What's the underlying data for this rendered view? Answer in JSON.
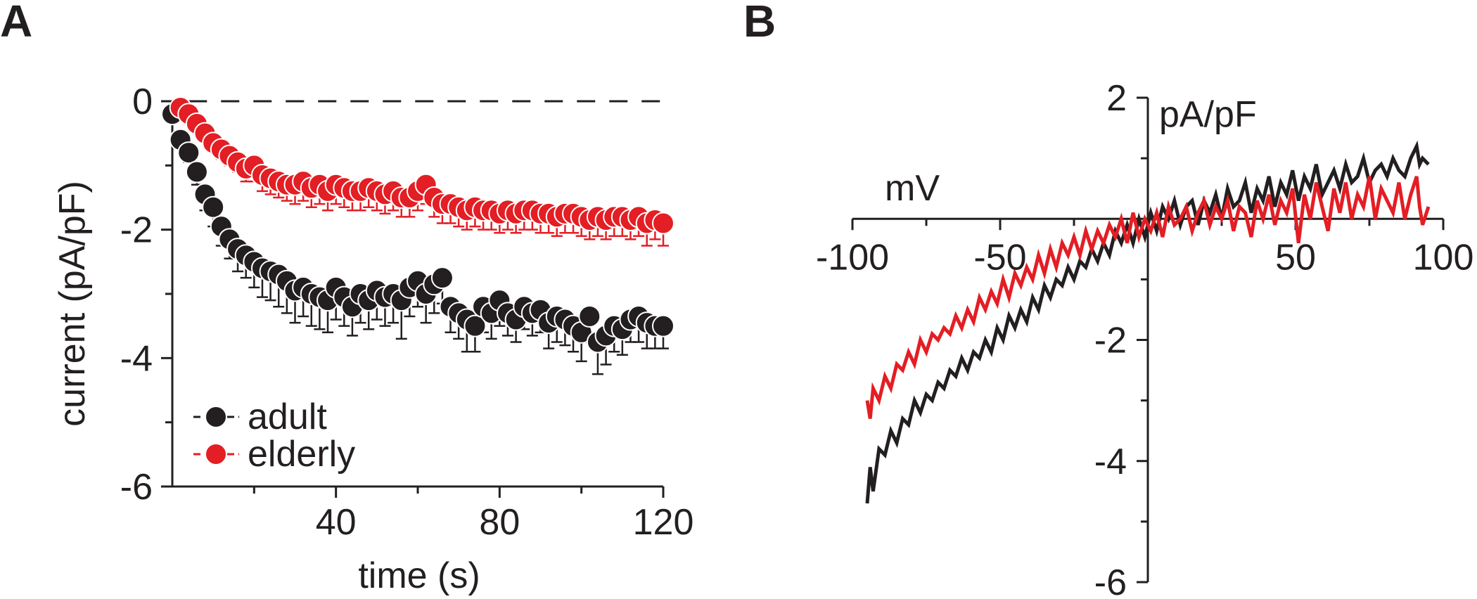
{
  "chart_data": [
    {
      "panel": "A",
      "type": "scatter",
      "xlabel": "time (s)",
      "ylabel": "current (pA/pF)",
      "xlim": [
        0,
        120
      ],
      "ylim": [
        -6,
        0
      ],
      "xticks": [
        40,
        80,
        120
      ],
      "yticks": [
        0,
        -2,
        -4,
        -6
      ],
      "reference_line": {
        "y": 0,
        "style": "dashed"
      },
      "legend": {
        "position": "bottom-left",
        "entries": [
          "adult",
          "elderly"
        ]
      },
      "series": [
        {
          "name": "adult",
          "color": "#231f20",
          "x": [
            0,
            2,
            4,
            6,
            8,
            10,
            12,
            14,
            16,
            18,
            20,
            22,
            24,
            26,
            28,
            30,
            32,
            34,
            36,
            38,
            40,
            42,
            44,
            46,
            48,
            50,
            52,
            54,
            56,
            58,
            60,
            62,
            64,
            66,
            68,
            70,
            72,
            74,
            76,
            78,
            80,
            82,
            84,
            86,
            88,
            90,
            92,
            94,
            96,
            98,
            100,
            102,
            104,
            106,
            108,
            110,
            112,
            114,
            116,
            118,
            120
          ],
          "y": [
            -0.2,
            -0.6,
            -0.8,
            -1.1,
            -1.45,
            -1.65,
            -1.95,
            -2.15,
            -2.3,
            -2.4,
            -2.5,
            -2.6,
            -2.65,
            -2.7,
            -2.8,
            -2.95,
            -2.9,
            -3.0,
            -3.05,
            -3.1,
            -2.9,
            -3.05,
            -3.2,
            -3.0,
            -3.1,
            -2.95,
            -3.05,
            -3.0,
            -3.1,
            -2.9,
            -2.8,
            -3.0,
            -2.85,
            -2.75,
            -3.2,
            -3.3,
            -3.4,
            -3.5,
            -3.2,
            -3.3,
            -3.1,
            -3.3,
            -3.4,
            -3.2,
            -3.3,
            -3.25,
            -3.45,
            -3.35,
            -3.4,
            -3.5,
            -3.6,
            -3.35,
            -3.75,
            -3.65,
            -3.5,
            -3.55,
            -3.4,
            -3.35,
            -3.45,
            -3.5,
            -3.5
          ],
          "error": [
            0.05,
            0.1,
            0.15,
            0.2,
            0.25,
            0.3,
            0.3,
            0.3,
            0.35,
            0.35,
            0.4,
            0.45,
            0.45,
            0.5,
            0.5,
            0.5,
            0.45,
            0.5,
            0.5,
            0.5,
            0.5,
            0.45,
            0.45,
            0.45,
            0.45,
            0.45,
            0.45,
            0.45,
            0.6,
            0.45,
            0.4,
            0.45,
            0.45,
            0.4,
            0.4,
            0.4,
            0.5,
            0.4,
            0.4,
            0.4,
            0.4,
            0.35,
            0.35,
            0.35,
            0.35,
            0.35,
            0.4,
            0.4,
            0.4,
            0.4,
            0.45,
            0.4,
            0.5,
            0.45,
            0.4,
            0.4,
            0.35,
            0.4,
            0.4,
            0.35,
            0.35
          ]
        },
        {
          "name": "elderly",
          "color": "#e31e24",
          "x": [
            2,
            4,
            6,
            8,
            10,
            12,
            14,
            16,
            18,
            20,
            22,
            24,
            26,
            28,
            30,
            32,
            34,
            36,
            38,
            40,
            42,
            44,
            46,
            48,
            50,
            52,
            54,
            56,
            58,
            60,
            62,
            64,
            66,
            68,
            70,
            72,
            74,
            76,
            78,
            80,
            82,
            84,
            86,
            88,
            90,
            92,
            94,
            96,
            98,
            100,
            102,
            104,
            106,
            108,
            110,
            112,
            114,
            116,
            118,
            120
          ],
          "y": [
            -0.1,
            -0.2,
            -0.35,
            -0.5,
            -0.65,
            -0.75,
            -0.85,
            -0.95,
            -1.05,
            -1.0,
            -1.15,
            -1.2,
            -1.25,
            -1.3,
            -1.3,
            -1.25,
            -1.35,
            -1.3,
            -1.4,
            -1.3,
            -1.35,
            -1.4,
            -1.4,
            -1.35,
            -1.4,
            -1.45,
            -1.4,
            -1.5,
            -1.5,
            -1.4,
            -1.3,
            -1.5,
            -1.6,
            -1.6,
            -1.65,
            -1.7,
            -1.65,
            -1.7,
            -1.7,
            -1.75,
            -1.7,
            -1.75,
            -1.7,
            -1.7,
            -1.75,
            -1.75,
            -1.8,
            -1.75,
            -1.75,
            -1.8,
            -1.85,
            -1.8,
            -1.85,
            -1.8,
            -1.8,
            -1.85,
            -1.8,
            -1.9,
            -1.85,
            -1.9
          ],
          "error": [
            0.05,
            0.05,
            0.1,
            0.1,
            0.1,
            0.15,
            0.15,
            0.15,
            0.2,
            0.25,
            0.25,
            0.25,
            0.25,
            0.25,
            0.3,
            0.3,
            0.3,
            0.3,
            0.3,
            0.3,
            0.3,
            0.3,
            0.3,
            0.3,
            0.3,
            0.3,
            0.3,
            0.3,
            0.3,
            0.3,
            0.3,
            0.3,
            0.3,
            0.3,
            0.3,
            0.3,
            0.3,
            0.3,
            0.3,
            0.3,
            0.3,
            0.3,
            0.3,
            0.3,
            0.3,
            0.3,
            0.3,
            0.3,
            0.3,
            0.3,
            0.3,
            0.3,
            0.3,
            0.3,
            0.3,
            0.3,
            0.3,
            0.35,
            0.3,
            0.35
          ]
        }
      ]
    },
    {
      "panel": "B",
      "type": "line",
      "xlabel": "mV",
      "ylabel": "pA/pF",
      "xlim": [
        -100,
        100
      ],
      "ylim": [
        -6,
        2
      ],
      "xticks": [
        -100,
        -50,
        50,
        100
      ],
      "yticks": [
        2,
        -2,
        -4,
        -6
      ],
      "series": [
        {
          "name": "adult",
          "color": "#231f20",
          "x": [
            -95,
            -94,
            -93,
            -91,
            -89,
            -87,
            -85,
            -83,
            -81,
            -79,
            -77,
            -75,
            -73,
            -71,
            -69,
            -67,
            -65,
            -63,
            -61,
            -59,
            -57,
            -55,
            -53,
            -51,
            -49,
            -47,
            -45,
            -43,
            -41,
            -39,
            -37,
            -35,
            -33,
            -31,
            -29,
            -27,
            -25,
            -23,
            -21,
            -19,
            -17,
            -15,
            -13,
            -11,
            -9,
            -7,
            -5,
            -3,
            -1,
            1,
            3,
            5,
            7,
            9,
            11,
            13,
            15,
            17,
            19,
            21,
            23,
            25,
            27,
            29,
            31,
            33,
            35,
            37,
            39,
            41,
            43,
            45,
            47,
            49,
            51,
            53,
            55,
            57,
            59,
            61,
            63,
            65,
            67,
            69,
            71,
            73,
            75,
            77,
            79,
            81,
            83,
            85,
            87,
            89,
            91,
            92,
            93,
            95
          ],
          "y": [
            -4.7,
            -4.1,
            -4.5,
            -3.8,
            -3.9,
            -3.5,
            -3.7,
            -3.3,
            -3.4,
            -3.0,
            -3.2,
            -2.9,
            -3.0,
            -2.7,
            -2.8,
            -2.5,
            -2.6,
            -2.3,
            -2.5,
            -2.2,
            -2.3,
            -2.0,
            -2.2,
            -1.8,
            -2.0,
            -1.6,
            -1.8,
            -1.5,
            -1.7,
            -1.3,
            -1.5,
            -1.1,
            -1.3,
            -1.0,
            -1.1,
            -0.8,
            -1.0,
            -0.7,
            -0.8,
            -0.5,
            -0.7,
            -0.4,
            -0.6,
            -0.2,
            -0.4,
            -0.1,
            -0.4,
            0.0,
            -0.3,
            0.1,
            -0.2,
            0.2,
            0.0,
            0.3,
            -0.1,
            0.2,
            0.3,
            -0.1,
            0.3,
            0.1,
            0.4,
            0.0,
            0.5,
            0.2,
            0.3,
            0.6,
            0.1,
            0.5,
            0.3,
            0.7,
            0.2,
            0.6,
            0.4,
            0.8,
            0.3,
            0.7,
            0.5,
            0.9,
            0.4,
            0.6,
            0.8,
            0.5,
            0.9,
            0.6,
            0.7,
            1.0,
            0.6,
            0.8,
            0.9,
            0.7,
            1.0,
            0.8,
            0.7,
            1.0,
            1.2,
            0.9,
            1.0,
            0.9
          ]
        },
        {
          "name": "elderly",
          "color": "#e31e24",
          "x": [
            -95,
            -94,
            -93,
            -91,
            -89,
            -87,
            -85,
            -83,
            -81,
            -79,
            -77,
            -75,
            -73,
            -71,
            -69,
            -67,
            -65,
            -63,
            -61,
            -59,
            -57,
            -55,
            -53,
            -51,
            -49,
            -47,
            -45,
            -43,
            -41,
            -39,
            -37,
            -35,
            -33,
            -31,
            -29,
            -27,
            -25,
            -23,
            -21,
            -19,
            -17,
            -15,
            -13,
            -11,
            -9,
            -7,
            -5,
            -3,
            -1,
            1,
            3,
            5,
            7,
            9,
            11,
            13,
            15,
            17,
            19,
            21,
            23,
            25,
            27,
            29,
            31,
            33,
            35,
            37,
            39,
            41,
            43,
            45,
            47,
            49,
            51,
            53,
            55,
            57,
            59,
            61,
            63,
            65,
            67,
            69,
            71,
            73,
            75,
            77,
            79,
            81,
            83,
            85,
            87,
            89,
            91,
            92,
            93,
            95
          ],
          "y": [
            -3.0,
            -3.3,
            -2.8,
            -3.0,
            -2.6,
            -2.8,
            -2.4,
            -2.5,
            -2.2,
            -2.4,
            -2.0,
            -2.2,
            -1.9,
            -2.0,
            -1.8,
            -1.9,
            -1.6,
            -1.8,
            -1.5,
            -1.7,
            -1.3,
            -1.5,
            -1.2,
            -1.4,
            -1.0,
            -1.3,
            -0.9,
            -1.1,
            -0.8,
            -1.0,
            -0.6,
            -0.9,
            -0.5,
            -0.8,
            -0.4,
            -0.6,
            -0.3,
            -0.6,
            -0.2,
            -0.5,
            -0.2,
            -0.4,
            -0.1,
            -0.3,
            0.0,
            -0.4,
            0.1,
            -0.3,
            0.0,
            -0.2,
            0.1,
            -0.3,
            0.2,
            -0.1,
            0.0,
            0.2,
            -0.2,
            0.1,
            0.3,
            -0.1,
            0.2,
            0.0,
            0.3,
            -0.2,
            0.2,
            0.1,
            -0.3,
            0.3,
            0.0,
            0.4,
            -0.1,
            0.3,
            0.1,
            0.5,
            -0.4,
            0.4,
            0.0,
            0.6,
            0.2,
            -0.2,
            0.5,
            0.1,
            0.6,
            0.0,
            0.4,
            0.2,
            0.7,
            0.0,
            0.5,
            0.3,
            0.1,
            0.6,
            0.0,
            0.4,
            0.7,
            0.2,
            -0.1,
            0.2
          ]
        }
      ]
    }
  ],
  "panel_letters": [
    "A",
    "B"
  ]
}
